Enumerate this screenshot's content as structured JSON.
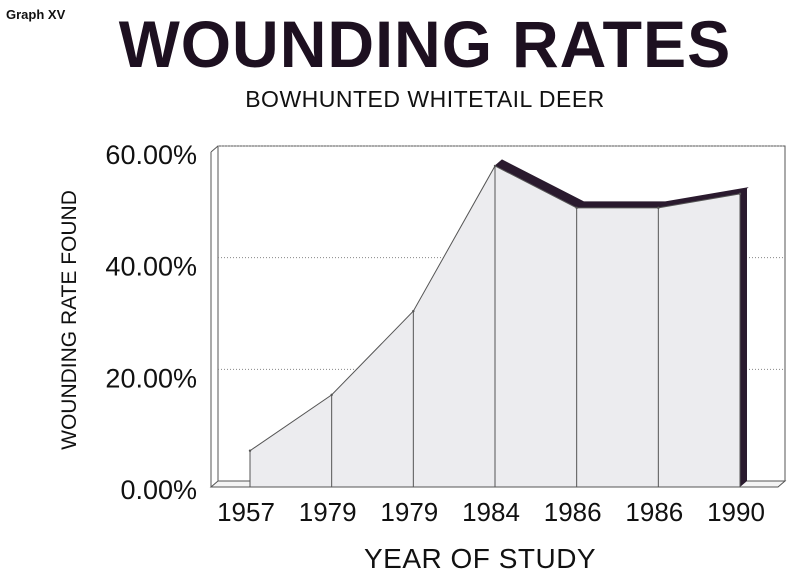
{
  "header": {
    "graph_id": "Graph XV",
    "title": "WOUNDING RATES",
    "subtitle": "BOWHUNTED WHITETAIL DEER"
  },
  "chart_data": {
    "type": "area",
    "title": "WOUNDING RATES",
    "subtitle": "BOWHUNTED WHITETAIL DEER",
    "xlabel": "YEAR OF STUDY",
    "ylabel": "WOUNDING RATE FOUND",
    "categories": [
      "1957",
      "1979",
      "1979",
      "1984",
      "1986",
      "1986",
      "1990"
    ],
    "series": [
      {
        "values": [
          6.5,
          16.5,
          31.5,
          57.5,
          50.0,
          50.0,
          52.5
        ]
      }
    ],
    "ylim": [
      0,
      60
    ],
    "yticks": [
      "0.00%",
      "20.00%",
      "40.00%",
      "60.00%"
    ],
    "ytick_values": [
      0,
      20,
      40,
      60
    ],
    "grid": true,
    "legend": "none",
    "colors": {
      "fill": "#ececef",
      "shadow": "#2a1a2e",
      "grid": "#888888",
      "line": "#555555"
    }
  }
}
